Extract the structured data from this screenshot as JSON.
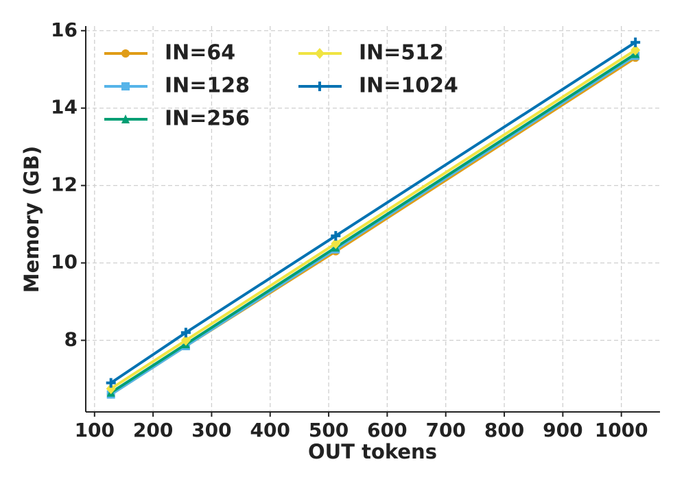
{
  "chart_data": {
    "type": "line",
    "x_label": "OUT tokens",
    "y_label": "Memory (GB)",
    "x": [
      128,
      256,
      512,
      1024
    ],
    "series": [
      {
        "name": "IN=64",
        "color": "#e09c16",
        "marker": "circle",
        "values": [
          6.6,
          7.85,
          10.3,
          15.3
        ]
      },
      {
        "name": "IN=128",
        "color": "#56b4e9",
        "marker": "square",
        "values": [
          6.6,
          7.85,
          10.35,
          15.35
        ]
      },
      {
        "name": "IN=256",
        "color": "#009e73",
        "marker": "triangle",
        "values": [
          6.65,
          7.9,
          10.4,
          15.4
        ]
      },
      {
        "name": "IN=512",
        "color": "#f0e442",
        "marker": "diamond",
        "values": [
          6.75,
          8.0,
          10.5,
          15.5
        ]
      },
      {
        "name": "IN=1024",
        "color": "#0072b2",
        "marker": "plus",
        "values": [
          6.9,
          8.2,
          10.7,
          15.7
        ]
      }
    ],
    "xlim": [
      85,
      1066
    ],
    "xticks": [
      100,
      200,
      300,
      400,
      500,
      600,
      700,
      800,
      900,
      1000
    ],
    "ylim": [
      6.15,
      16.12
    ],
    "yticks": [
      8,
      10,
      12,
      14,
      16
    ],
    "grid": true,
    "legend": "upper left"
  }
}
